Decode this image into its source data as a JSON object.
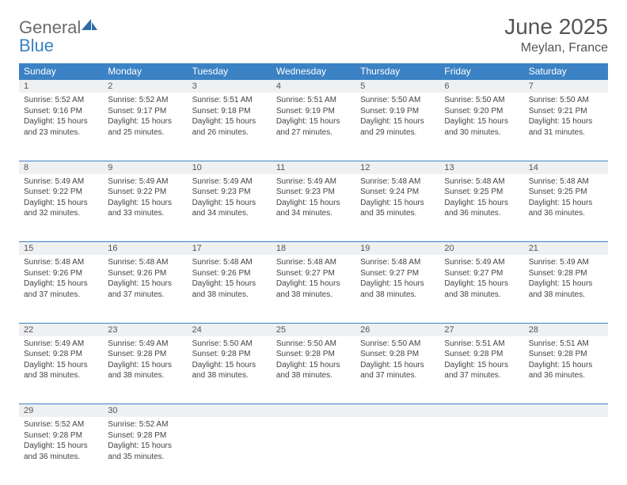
{
  "brand": {
    "word1": "General",
    "word2": "Blue"
  },
  "title": "June 2025",
  "location": "Meylan, France",
  "colors": {
    "header_bg": "#3b82c4",
    "header_text": "#ffffff",
    "daynum_bg": "#eef0f2",
    "row_divider": "#3b82c4",
    "body_text": "#444444",
    "title_text": "#555555"
  },
  "day_headers": [
    "Sunday",
    "Monday",
    "Tuesday",
    "Wednesday",
    "Thursday",
    "Friday",
    "Saturday"
  ],
  "weeks": [
    [
      {
        "n": "1",
        "sr": "5:52 AM",
        "ss": "9:16 PM",
        "dl": "15 hours and 23 minutes."
      },
      {
        "n": "2",
        "sr": "5:52 AM",
        "ss": "9:17 PM",
        "dl": "15 hours and 25 minutes."
      },
      {
        "n": "3",
        "sr": "5:51 AM",
        "ss": "9:18 PM",
        "dl": "15 hours and 26 minutes."
      },
      {
        "n": "4",
        "sr": "5:51 AM",
        "ss": "9:19 PM",
        "dl": "15 hours and 27 minutes."
      },
      {
        "n": "5",
        "sr": "5:50 AM",
        "ss": "9:19 PM",
        "dl": "15 hours and 29 minutes."
      },
      {
        "n": "6",
        "sr": "5:50 AM",
        "ss": "9:20 PM",
        "dl": "15 hours and 30 minutes."
      },
      {
        "n": "7",
        "sr": "5:50 AM",
        "ss": "9:21 PM",
        "dl": "15 hours and 31 minutes."
      }
    ],
    [
      {
        "n": "8",
        "sr": "5:49 AM",
        "ss": "9:22 PM",
        "dl": "15 hours and 32 minutes."
      },
      {
        "n": "9",
        "sr": "5:49 AM",
        "ss": "9:22 PM",
        "dl": "15 hours and 33 minutes."
      },
      {
        "n": "10",
        "sr": "5:49 AM",
        "ss": "9:23 PM",
        "dl": "15 hours and 34 minutes."
      },
      {
        "n": "11",
        "sr": "5:49 AM",
        "ss": "9:23 PM",
        "dl": "15 hours and 34 minutes."
      },
      {
        "n": "12",
        "sr": "5:48 AM",
        "ss": "9:24 PM",
        "dl": "15 hours and 35 minutes."
      },
      {
        "n": "13",
        "sr": "5:48 AM",
        "ss": "9:25 PM",
        "dl": "15 hours and 36 minutes."
      },
      {
        "n": "14",
        "sr": "5:48 AM",
        "ss": "9:25 PM",
        "dl": "15 hours and 36 minutes."
      }
    ],
    [
      {
        "n": "15",
        "sr": "5:48 AM",
        "ss": "9:26 PM",
        "dl": "15 hours and 37 minutes."
      },
      {
        "n": "16",
        "sr": "5:48 AM",
        "ss": "9:26 PM",
        "dl": "15 hours and 37 minutes."
      },
      {
        "n": "17",
        "sr": "5:48 AM",
        "ss": "9:26 PM",
        "dl": "15 hours and 38 minutes."
      },
      {
        "n": "18",
        "sr": "5:48 AM",
        "ss": "9:27 PM",
        "dl": "15 hours and 38 minutes."
      },
      {
        "n": "19",
        "sr": "5:48 AM",
        "ss": "9:27 PM",
        "dl": "15 hours and 38 minutes."
      },
      {
        "n": "20",
        "sr": "5:49 AM",
        "ss": "9:27 PM",
        "dl": "15 hours and 38 minutes."
      },
      {
        "n": "21",
        "sr": "5:49 AM",
        "ss": "9:28 PM",
        "dl": "15 hours and 38 minutes."
      }
    ],
    [
      {
        "n": "22",
        "sr": "5:49 AM",
        "ss": "9:28 PM",
        "dl": "15 hours and 38 minutes."
      },
      {
        "n": "23",
        "sr": "5:49 AM",
        "ss": "9:28 PM",
        "dl": "15 hours and 38 minutes."
      },
      {
        "n": "24",
        "sr": "5:50 AM",
        "ss": "9:28 PM",
        "dl": "15 hours and 38 minutes."
      },
      {
        "n": "25",
        "sr": "5:50 AM",
        "ss": "9:28 PM",
        "dl": "15 hours and 38 minutes."
      },
      {
        "n": "26",
        "sr": "5:50 AM",
        "ss": "9:28 PM",
        "dl": "15 hours and 37 minutes."
      },
      {
        "n": "27",
        "sr": "5:51 AM",
        "ss": "9:28 PM",
        "dl": "15 hours and 37 minutes."
      },
      {
        "n": "28",
        "sr": "5:51 AM",
        "ss": "9:28 PM",
        "dl": "15 hours and 36 minutes."
      }
    ],
    [
      {
        "n": "29",
        "sr": "5:52 AM",
        "ss": "9:28 PM",
        "dl": "15 hours and 36 minutes."
      },
      {
        "n": "30",
        "sr": "5:52 AM",
        "ss": "9:28 PM",
        "dl": "15 hours and 35 minutes."
      },
      null,
      null,
      null,
      null,
      null
    ]
  ],
  "labels": {
    "sunrise": "Sunrise:",
    "sunset": "Sunset:",
    "daylight": "Daylight:"
  }
}
